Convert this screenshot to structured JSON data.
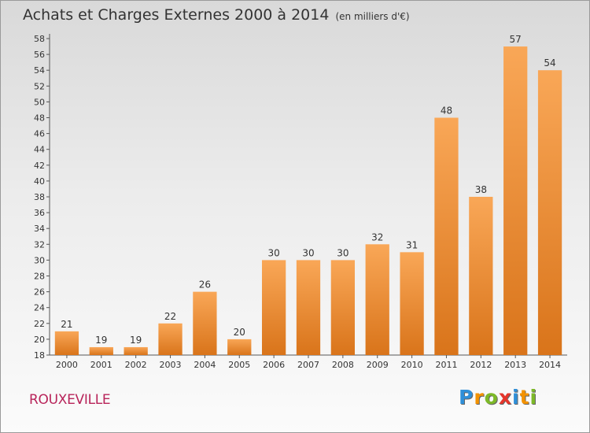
{
  "chart_data": {
    "type": "bar",
    "title": "Achats et Charges Externes 2000 à 2014",
    "subtitle": "(en milliers d'€)",
    "categories": [
      "2000",
      "2001",
      "2002",
      "2003",
      "2004",
      "2005",
      "2006",
      "2007",
      "2008",
      "2009",
      "2010",
      "2011",
      "2012",
      "2013",
      "2014"
    ],
    "values": [
      21,
      19,
      19,
      22,
      26,
      20,
      30,
      30,
      30,
      32,
      31,
      48,
      38,
      57,
      54
    ],
    "ylim": [
      18,
      58
    ],
    "ytick_step": 2,
    "grid": false,
    "bar_color_top": "#f9a757",
    "bar_color_bottom": "#d9741a",
    "xlabel": "",
    "ylabel": ""
  },
  "footer": {
    "commune": "ROUXEVILLE",
    "brand_letters": [
      {
        "ch": "P",
        "color": "#2f8fd8"
      },
      {
        "ch": "r",
        "color": "#f39200"
      },
      {
        "ch": "o",
        "color": "#7db928"
      },
      {
        "ch": "x",
        "color": "#e5352b"
      },
      {
        "ch": "i",
        "color": "#2f8fd8"
      },
      {
        "ch": "t",
        "color": "#f39200"
      },
      {
        "ch": "i",
        "color": "#7db928"
      }
    ]
  }
}
